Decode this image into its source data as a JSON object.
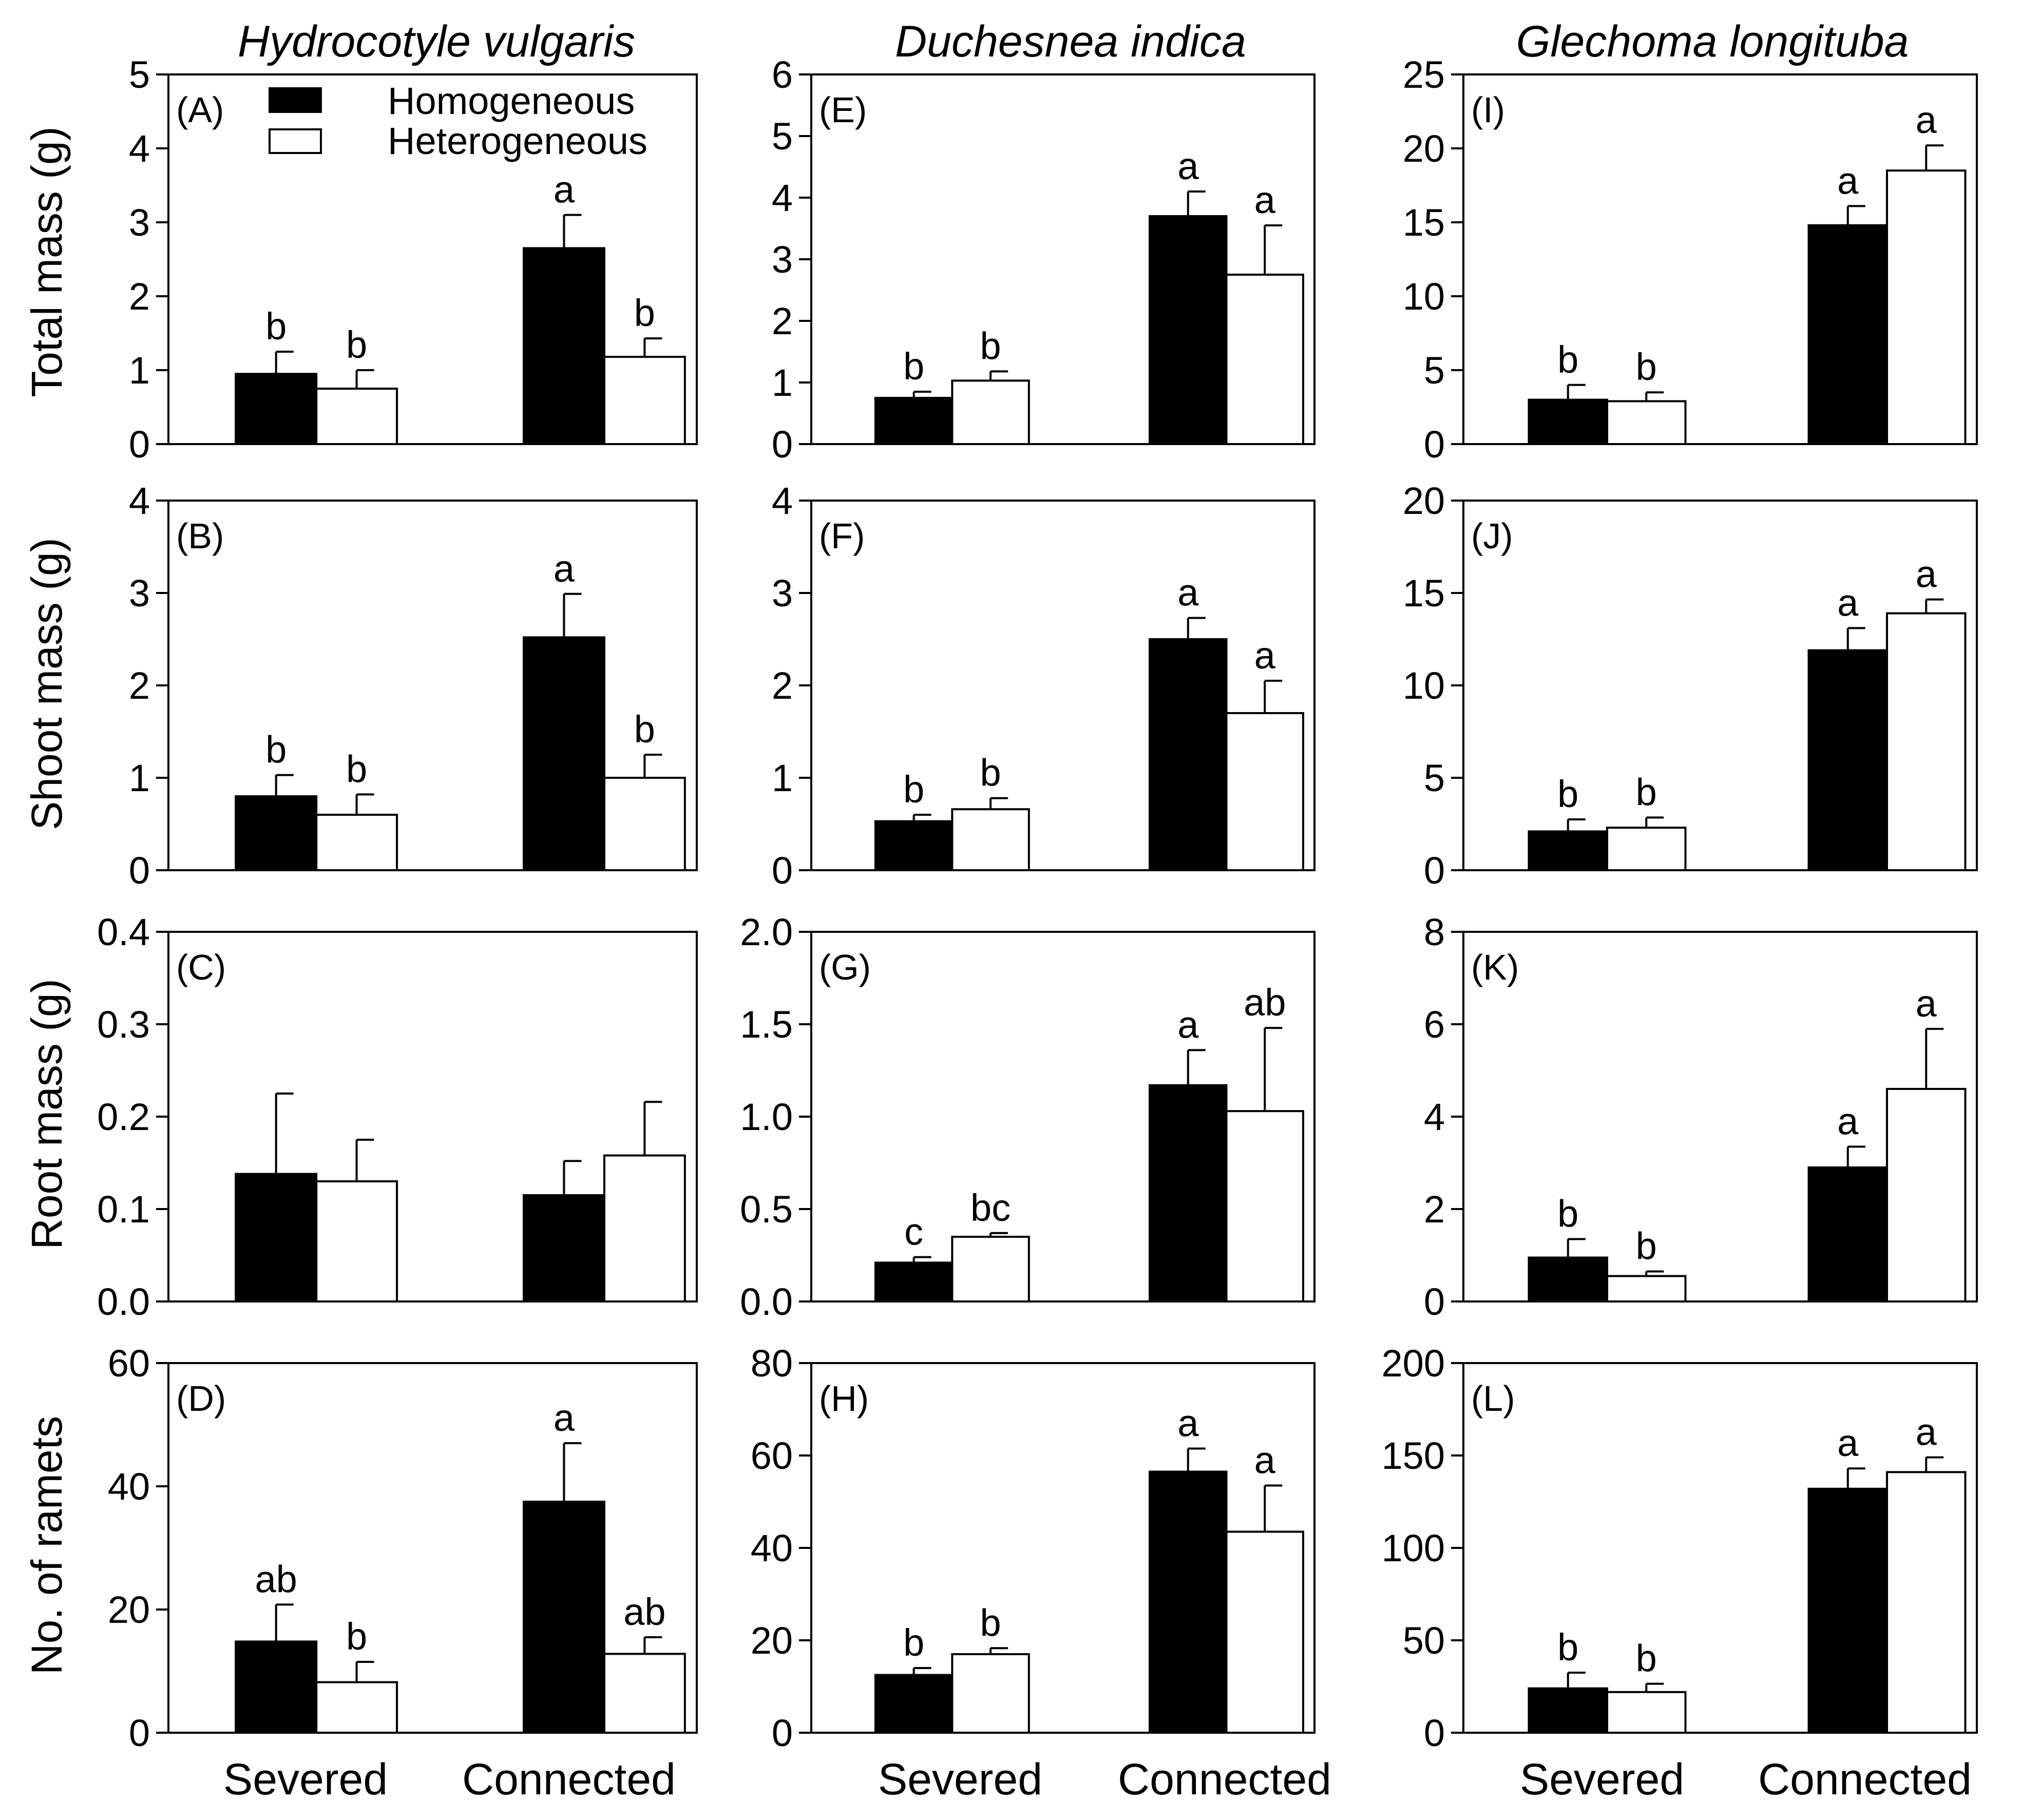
{
  "legend": [
    "Homogeneous",
    "Heterogeneous"
  ],
  "x_categories": [
    "Severed",
    "Connected"
  ],
  "species": [
    {
      "name": "Hydrocotyle vulgaris"
    },
    {
      "name": "Duchesnea indica"
    },
    {
      "name": "Glechoma longituba"
    }
  ],
  "row_labels": [
    "Total mass (g)",
    "Shoot mass (g)",
    "Root mass (g)",
    "No. of ramets"
  ],
  "colors": {
    "homogeneous": "#000000",
    "heterogeneous": "#ffffff"
  },
  "chart_data": [
    {
      "type": "bar",
      "panel": "(A)",
      "ylabel": "Total mass (g)",
      "ylim": [
        0,
        5
      ],
      "ticks": [
        "0",
        "1",
        "2",
        "3",
        "4",
        "5"
      ],
      "categories": [
        "Severed",
        "Connected"
      ],
      "series": [
        {
          "name": "Homogeneous",
          "values": [
            0.95,
            2.65
          ],
          "errors": [
            0.3,
            0.45
          ],
          "letters": [
            "b",
            "a"
          ]
        },
        {
          "name": "Heterogeneous",
          "values": [
            0.75,
            1.18
          ],
          "errors": [
            0.25,
            0.25
          ],
          "letters": [
            "b",
            "b"
          ]
        }
      ]
    },
    {
      "type": "bar",
      "panel": "(E)",
      "ylabel": "Total mass (g)",
      "ylim": [
        0,
        6
      ],
      "ticks": [
        "0",
        "1",
        "2",
        "3",
        "4",
        "5",
        "6"
      ],
      "categories": [
        "Severed",
        "Connected"
      ],
      "series": [
        {
          "name": "Homogeneous",
          "values": [
            0.75,
            3.7
          ],
          "errors": [
            0.1,
            0.4
          ],
          "letters": [
            "b",
            "a"
          ]
        },
        {
          "name": "Heterogeneous",
          "values": [
            1.03,
            2.75
          ],
          "errors": [
            0.15,
            0.8
          ],
          "letters": [
            "b",
            "a"
          ]
        }
      ]
    },
    {
      "type": "bar",
      "panel": "(I)",
      "ylabel": "Total mass (g)",
      "ylim": [
        0,
        25
      ],
      "ticks": [
        "0",
        "5",
        "10",
        "15",
        "20",
        "25"
      ],
      "categories": [
        "Severed",
        "Connected"
      ],
      "series": [
        {
          "name": "Homogeneous",
          "values": [
            3.0,
            14.8
          ],
          "errors": [
            1.0,
            1.3
          ],
          "letters": [
            "b",
            "a"
          ]
        },
        {
          "name": "Heterogeneous",
          "values": [
            2.9,
            18.5
          ],
          "errors": [
            0.6,
            1.7
          ],
          "letters": [
            "b",
            "a"
          ]
        }
      ]
    },
    {
      "type": "bar",
      "panel": "(B)",
      "ylabel": "Shoot mass (g)",
      "ylim": [
        0,
        4
      ],
      "ticks": [
        "0",
        "1",
        "2",
        "3",
        "4"
      ],
      "categories": [
        "Severed",
        "Connected"
      ],
      "series": [
        {
          "name": "Homogeneous",
          "values": [
            0.8,
            2.52
          ],
          "errors": [
            0.23,
            0.47
          ],
          "letters": [
            "b",
            "a"
          ]
        },
        {
          "name": "Heterogeneous",
          "values": [
            0.6,
            1.0
          ],
          "errors": [
            0.22,
            0.25
          ],
          "letters": [
            "b",
            "b"
          ]
        }
      ]
    },
    {
      "type": "bar",
      "panel": "(F)",
      "ylabel": "Shoot mass (g)",
      "ylim": [
        0,
        4
      ],
      "ticks": [
        "0",
        "1",
        "2",
        "3",
        "4"
      ],
      "categories": [
        "Severed",
        "Connected"
      ],
      "series": [
        {
          "name": "Homogeneous",
          "values": [
            0.53,
            2.5
          ],
          "errors": [
            0.07,
            0.23
          ],
          "letters": [
            "b",
            "a"
          ]
        },
        {
          "name": "Heterogeneous",
          "values": [
            0.66,
            1.7
          ],
          "errors": [
            0.12,
            0.35
          ],
          "letters": [
            "b",
            "a"
          ]
        }
      ]
    },
    {
      "type": "bar",
      "panel": "(J)",
      "ylabel": "Shoot mass (g)",
      "ylim": [
        0,
        20
      ],
      "ticks": [
        "0",
        "5",
        "10",
        "15",
        "20"
      ],
      "categories": [
        "Severed",
        "Connected"
      ],
      "series": [
        {
          "name": "Homogeneous",
          "values": [
            2.1,
            11.9
          ],
          "errors": [
            0.65,
            1.2
          ],
          "letters": [
            "b",
            "a"
          ]
        },
        {
          "name": "Heterogeneous",
          "values": [
            2.3,
            13.9
          ],
          "errors": [
            0.55,
            0.75
          ],
          "letters": [
            "b",
            "a"
          ]
        }
      ]
    },
    {
      "type": "bar",
      "panel": "(C)",
      "ylabel": "Root mass (g)",
      "ylim": [
        0,
        0.4
      ],
      "ticks": [
        "0.0",
        "0.1",
        "0.2",
        "0.3",
        "0.4"
      ],
      "categories": [
        "Severed",
        "Connected"
      ],
      "series": [
        {
          "name": "Homogeneous",
          "values": [
            0.138,
            0.115
          ],
          "errors": [
            0.087,
            0.037
          ],
          "letters": [
            "",
            ""
          ]
        },
        {
          "name": "Heterogeneous",
          "values": [
            0.13,
            0.158
          ],
          "errors": [
            0.045,
            0.058
          ],
          "letters": [
            "",
            ""
          ]
        }
      ]
    },
    {
      "type": "bar",
      "panel": "(G)",
      "ylabel": "Root mass (g)",
      "ylim": [
        0,
        2.0
      ],
      "ticks": [
        "0.0",
        "0.5",
        "1.0",
        "1.5",
        "2.0"
      ],
      "categories": [
        "Severed",
        "Connected"
      ],
      "series": [
        {
          "name": "Homogeneous",
          "values": [
            0.21,
            1.17
          ],
          "errors": [
            0.03,
            0.19
          ],
          "letters": [
            "c",
            "a"
          ]
        },
        {
          "name": "Heterogeneous",
          "values": [
            0.35,
            1.03
          ],
          "errors": [
            0.02,
            0.45
          ],
          "letters": [
            "bc",
            "ab"
          ]
        }
      ]
    },
    {
      "type": "bar",
      "panel": "(K)",
      "ylabel": "Root mass (g)",
      "ylim": [
        0,
        8
      ],
      "ticks": [
        "0",
        "2",
        "4",
        "6",
        "8"
      ],
      "categories": [
        "Severed",
        "Connected"
      ],
      "series": [
        {
          "name": "Homogeneous",
          "values": [
            0.95,
            2.9
          ],
          "errors": [
            0.4,
            0.45
          ],
          "letters": [
            "b",
            "a"
          ]
        },
        {
          "name": "Heterogeneous",
          "values": [
            0.55,
            4.6
          ],
          "errors": [
            0.1,
            1.3
          ],
          "letters": [
            "b",
            "a"
          ]
        }
      ]
    },
    {
      "type": "bar",
      "panel": "(D)",
      "ylabel": "No. of ramets",
      "ylim": [
        0,
        60
      ],
      "ticks": [
        "0",
        "20",
        "40",
        "60"
      ],
      "categories": [
        "Severed",
        "Connected"
      ],
      "series": [
        {
          "name": "Homogeneous",
          "values": [
            14.8,
            37.5
          ],
          "errors": [
            6.0,
            9.5
          ],
          "letters": [
            "ab",
            "a"
          ]
        },
        {
          "name": "Heterogeneous",
          "values": [
            8.2,
            12.8
          ],
          "errors": [
            3.3,
            2.7
          ],
          "letters": [
            "b",
            "ab"
          ]
        }
      ]
    },
    {
      "type": "bar",
      "panel": "(H)",
      "ylabel": "No. of ramets",
      "ylim": [
        0,
        80
      ],
      "ticks": [
        "0",
        "20",
        "40",
        "60",
        "80"
      ],
      "categories": [
        "Severed",
        "Connected"
      ],
      "series": [
        {
          "name": "Homogeneous",
          "values": [
            12.5,
            56.5
          ],
          "errors": [
            1.5,
            5.0
          ],
          "letters": [
            "b",
            "a"
          ]
        },
        {
          "name": "Heterogeneous",
          "values": [
            17.0,
            43.5
          ],
          "errors": [
            1.3,
            10.0
          ],
          "letters": [
            "b",
            "a"
          ]
        }
      ]
    },
    {
      "type": "bar",
      "panel": "(L)",
      "ylabel": "No. of ramets",
      "ylim": [
        0,
        200
      ],
      "ticks": [
        "0",
        "50",
        "100",
        "150",
        "200"
      ],
      "categories": [
        "Severed",
        "Connected"
      ],
      "series": [
        {
          "name": "Homogeneous",
          "values": [
            24,
            132
          ],
          "errors": [
            8.5,
            11
          ],
          "letters": [
            "b",
            "a"
          ]
        },
        {
          "name": "Heterogeneous",
          "values": [
            22,
            141
          ],
          "errors": [
            4.5,
            8
          ],
          "letters": [
            "b",
            "a"
          ]
        }
      ]
    }
  ]
}
